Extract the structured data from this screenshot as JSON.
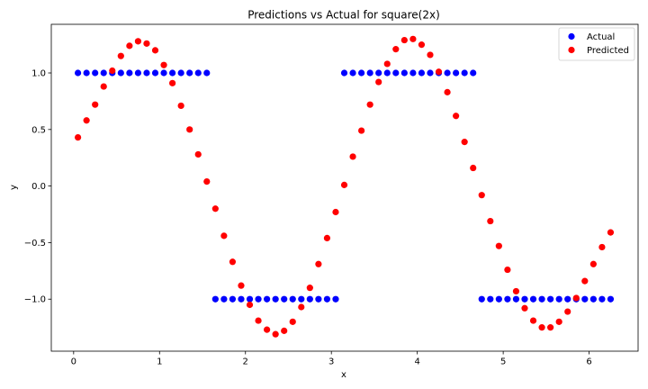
{
  "chart_data": {
    "type": "scatter",
    "title": "Predictions vs Actual for square(2x)",
    "xlabel": "x",
    "ylabel": "y",
    "xlim": [
      -0.26,
      6.57
    ],
    "ylim": [
      -1.46,
      1.43
    ],
    "xticks": [
      0,
      1,
      2,
      3,
      4,
      5,
      6
    ],
    "yticks": [
      -1.0,
      -0.5,
      0.0,
      0.5,
      1.0
    ],
    "ytick_labels": [
      "−1.0",
      "−0.5",
      "0.0",
      "0.5",
      "1.0"
    ],
    "grid": false,
    "legend_position": "top-right",
    "x": [
      0.05,
      0.15,
      0.25,
      0.35,
      0.45,
      0.55,
      0.65,
      0.75,
      0.85,
      0.95,
      1.05,
      1.15,
      1.25,
      1.35,
      1.45,
      1.55,
      1.65,
      1.75,
      1.85,
      1.95,
      2.05,
      2.15,
      2.25,
      2.35,
      2.45,
      2.55,
      2.65,
      2.75,
      2.85,
      2.95,
      3.05,
      3.15,
      3.25,
      3.35,
      3.45,
      3.55,
      3.65,
      3.75,
      3.85,
      3.95,
      4.05,
      4.15,
      4.25,
      4.35,
      4.45,
      4.55,
      4.65,
      4.75,
      4.85,
      4.95,
      5.05,
      5.15,
      5.25,
      5.35,
      5.45,
      5.55,
      5.65,
      5.75,
      5.85,
      5.95,
      6.05,
      6.15,
      6.25
    ],
    "series": [
      {
        "name": "Actual",
        "color": "#0000ff",
        "values": [
          1,
          1,
          1,
          1,
          1,
          1,
          1,
          1,
          1,
          1,
          1,
          1,
          1,
          1,
          1,
          1,
          -1,
          -1,
          -1,
          -1,
          -1,
          -1,
          -1,
          -1,
          -1,
          -1,
          -1,
          -1,
          -1,
          -1,
          -1,
          1,
          1,
          1,
          1,
          1,
          1,
          1,
          1,
          1,
          1,
          1,
          1,
          1,
          1,
          1,
          1,
          -1,
          -1,
          -1,
          -1,
          -1,
          -1,
          -1,
          -1,
          -1,
          -1,
          -1,
          -1,
          -1,
          -1,
          -1,
          -1
        ]
      },
      {
        "name": "Predicted",
        "color": "#ff0000",
        "values": [
          0.43,
          0.58,
          0.72,
          0.88,
          1.02,
          1.15,
          1.24,
          1.28,
          1.26,
          1.2,
          1.07,
          0.91,
          0.71,
          0.5,
          0.28,
          0.04,
          -0.2,
          -0.44,
          -0.67,
          -0.88,
          -1.05,
          -1.19,
          -1.27,
          -1.31,
          -1.28,
          -1.2,
          -1.07,
          -0.9,
          -0.69,
          -0.46,
          -0.23,
          0.01,
          0.26,
          0.49,
          0.72,
          0.92,
          1.08,
          1.21,
          1.29,
          1.3,
          1.25,
          1.16,
          1.01,
          0.83,
          0.62,
          0.39,
          0.16,
          -0.08,
          -0.31,
          -0.53,
          -0.74,
          -0.93,
          -1.08,
          -1.19,
          -1.25,
          -1.25,
          -1.2,
          -1.11,
          -0.99,
          -0.84,
          -0.69,
          -0.54,
          -0.41
        ]
      }
    ]
  }
}
